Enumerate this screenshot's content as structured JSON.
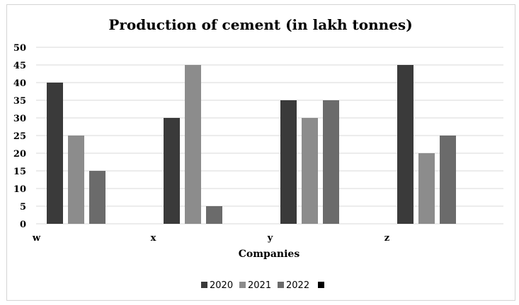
{
  "chart_data": {
    "type": "bar",
    "title": "Production of cement (in lakh tonnes)",
    "xlabel": "Companies",
    "ylabel": "",
    "categories": [
      "w",
      "x",
      "y",
      "z"
    ],
    "series": [
      {
        "name": "2020",
        "values": [
          40,
          30,
          35,
          45
        ],
        "color": "#3a3a3a"
      },
      {
        "name": "2021",
        "values": [
          25,
          45,
          30,
          20
        ],
        "color": "#8c8c8c"
      },
      {
        "name": "2022",
        "values": [
          15,
          5,
          35,
          25
        ],
        "color": "#6b6b6b"
      },
      {
        "name": "",
        "values": [
          0,
          0,
          0,
          0
        ],
        "color": "#000000"
      }
    ],
    "ylim": [
      0,
      50
    ],
    "yticks": [
      "0",
      "5",
      "10",
      "15",
      "20",
      "25",
      "30",
      "35",
      "40",
      "45",
      "50"
    ],
    "grid": true,
    "legend_position": "bottom"
  }
}
